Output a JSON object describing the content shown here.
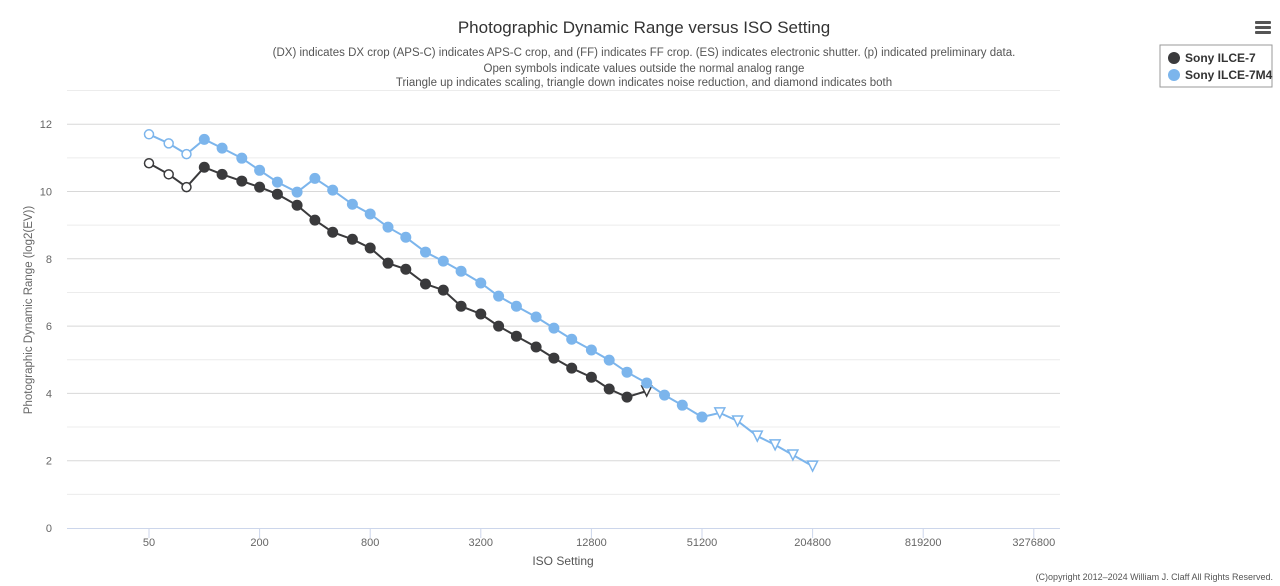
{
  "menu_icon": "hamburger-icon",
  "copyright": "(C)opyright 2012–2024 William J. Claff All Rights Reserved.",
  "chart_data": {
    "type": "line",
    "title": "Photographic Dynamic Range versus ISO Setting",
    "subtitle": [
      "(DX) indicates DX crop (APS-C) indicates APS-C crop, and (FF) indicates FF crop. (ES) indicates electronic shutter. (p) indicated preliminary data.",
      "Open symbols indicate values outside the normal analog range",
      "Triangle up indicates scaling, triangle down indicates noise reduction, and diamond indicates both"
    ],
    "xlabel": "ISO Setting",
    "ylabel": "Photographic Dynamic Range (log2(EV))",
    "xscale": "log2",
    "xlim": [
      25,
      4000000
    ],
    "ylim": [
      0,
      13
    ],
    "xticks": [
      50,
      200,
      800,
      3200,
      12800,
      51200,
      204800,
      819200,
      3276800
    ],
    "yticks": [
      0,
      2,
      4,
      6,
      8,
      10,
      12
    ],
    "legend_position": "top-right",
    "series": [
      {
        "name": "Sony ILCE-7",
        "color": "#3a3a3c",
        "x": [
          50,
          64,
          80,
          100,
          125,
          160,
          200,
          250,
          320,
          400,
          500,
          640,
          800,
          1000,
          1250,
          1600,
          2000,
          2500,
          3200,
          4000,
          5000,
          6400,
          8000,
          10000,
          12800,
          16000,
          20000,
          25600
        ],
        "y": [
          10.84,
          10.51,
          10.13,
          10.72,
          10.51,
          10.31,
          10.13,
          9.92,
          9.59,
          9.15,
          8.79,
          8.58,
          8.32,
          7.87,
          7.69,
          7.25,
          7.07,
          6.59,
          6.36,
          6.0,
          5.7,
          5.38,
          5.05,
          4.75,
          4.48,
          4.13,
          3.89,
          4.07
        ],
        "markers": [
          "open-circle",
          "open-circle",
          "open-circle",
          "circle",
          "circle",
          "circle",
          "circle",
          "circle",
          "circle",
          "circle",
          "circle",
          "circle",
          "circle",
          "circle",
          "circle",
          "circle",
          "circle",
          "circle",
          "circle",
          "circle",
          "circle",
          "circle",
          "circle",
          "circle",
          "circle",
          "circle",
          "circle",
          "open-triangle-down"
        ]
      },
      {
        "name": "Sony ILCE-7M4",
        "color": "#7cb5ec",
        "x": [
          50,
          64,
          80,
          100,
          125,
          160,
          200,
          250,
          320,
          400,
          500,
          640,
          800,
          1000,
          1250,
          1600,
          2000,
          2500,
          3200,
          4000,
          5000,
          6400,
          8000,
          10000,
          12800,
          16000,
          20000,
          25600,
          32000,
          40000,
          51200,
          64000,
          80000,
          102400,
          128000,
          160000,
          204800
        ],
        "y": [
          11.7,
          11.43,
          11.11,
          11.55,
          11.29,
          10.99,
          10.63,
          10.28,
          9.98,
          10.39,
          10.04,
          9.62,
          9.33,
          8.94,
          8.64,
          8.2,
          7.93,
          7.63,
          7.28,
          6.89,
          6.59,
          6.27,
          5.94,
          5.61,
          5.29,
          4.99,
          4.63,
          4.31,
          3.95,
          3.65,
          3.3,
          3.42,
          3.18,
          2.73,
          2.47,
          2.17,
          1.84
        ],
        "markers": [
          "open-circle",
          "open-circle",
          "open-circle",
          "circle",
          "circle",
          "circle",
          "circle",
          "circle",
          "circle",
          "circle",
          "circle",
          "circle",
          "circle",
          "circle",
          "circle",
          "circle",
          "circle",
          "circle",
          "circle",
          "circle",
          "circle",
          "circle",
          "circle",
          "circle",
          "circle",
          "circle",
          "circle",
          "circle",
          "circle",
          "circle",
          "circle",
          "open-triangle-down",
          "open-triangle-down",
          "open-triangle-down",
          "open-triangle-down",
          "open-triangle-down",
          "open-triangle-down"
        ]
      }
    ]
  }
}
